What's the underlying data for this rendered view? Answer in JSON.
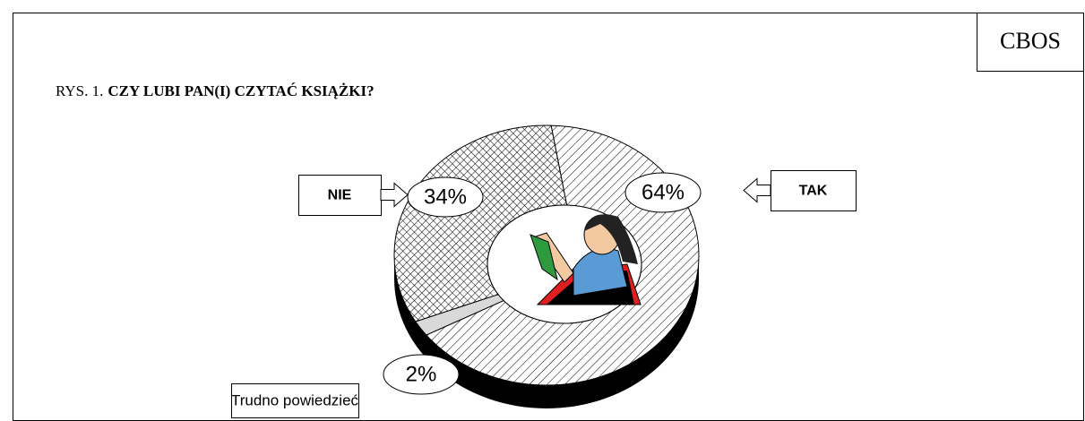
{
  "source": "CBOS",
  "chart_data": {
    "type": "pie",
    "figure_label": "RYS. 1.",
    "title": "CZY LUBI PAN(I) CZYTAĆ KSIĄŻKI?",
    "categories": [
      "TAK",
      "Trudno powiedzieć",
      "NIE"
    ],
    "values": [
      64,
      2,
      34
    ],
    "value_labels": [
      "64%",
      "2%",
      "34%"
    ],
    "colors": [
      "#ffffff",
      "#d9d9d9",
      "#ffffff"
    ]
  }
}
